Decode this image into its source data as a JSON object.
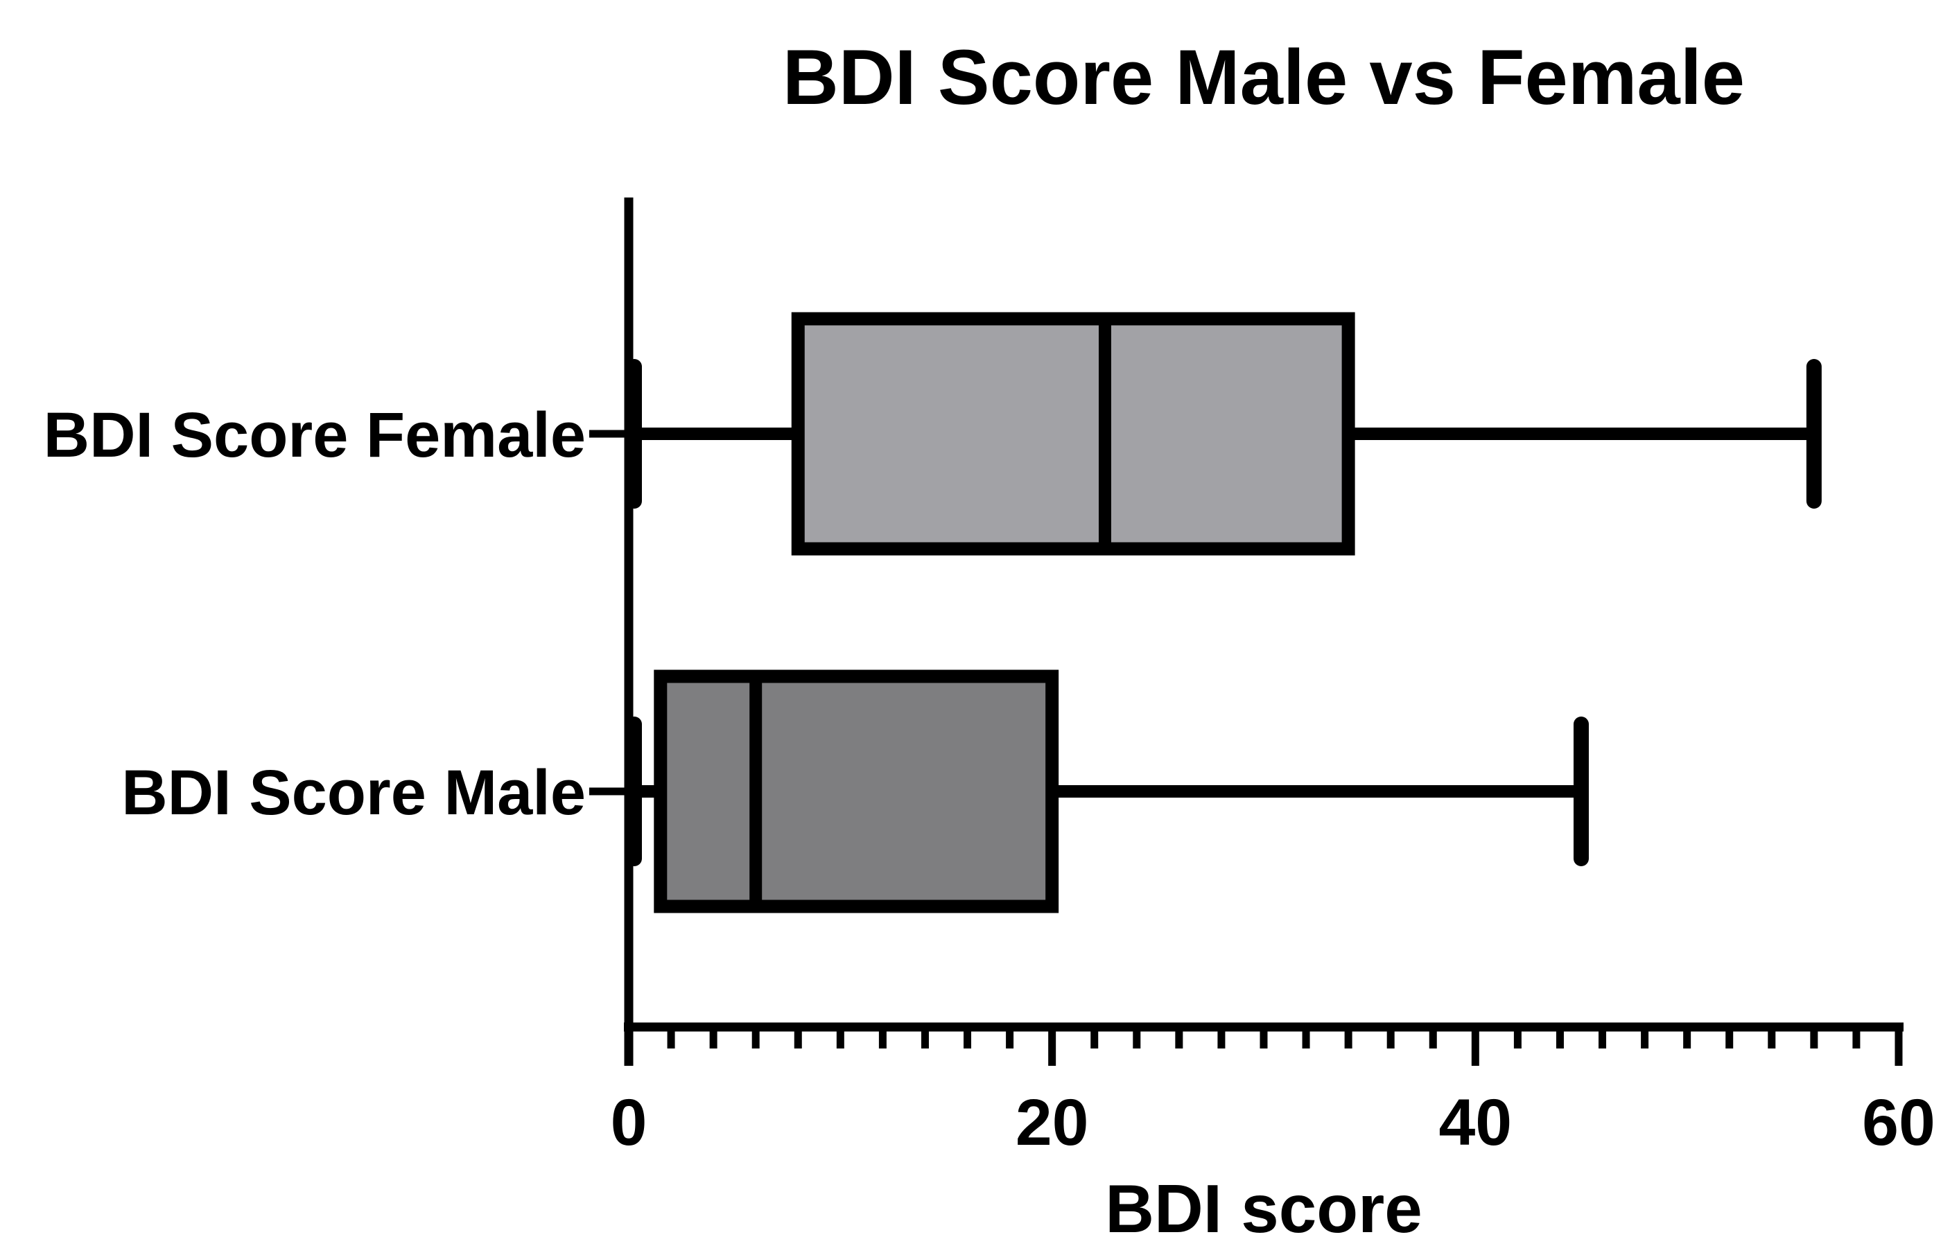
{
  "chart_data": {
    "type": "boxplot",
    "orientation": "horizontal",
    "title": "BDI Score Male vs Female",
    "xlabel": "BDI score",
    "ylabel": "",
    "xlim": [
      0,
      60
    ],
    "major_tick_step": 20,
    "minor_tick_step": 2,
    "tick_labels": [
      "0",
      "20",
      "40",
      "60"
    ],
    "grid": false,
    "legend": "none",
    "categories": [
      "BDI Score Female",
      "BDI Score Male"
    ],
    "series": [
      {
        "name": "BDI Score Female",
        "min": 0,
        "q1": 8,
        "median": 22.5,
        "q3": 34,
        "max": 56,
        "fill": "#A2A2A6"
      },
      {
        "name": "BDI Score Male",
        "min": 0,
        "q1": 1.5,
        "median": 6,
        "q3": 20,
        "max": 45,
        "fill": "#7E7E80"
      }
    ],
    "stroke_color": "#000000",
    "background_color": "#FFFFFF"
  }
}
